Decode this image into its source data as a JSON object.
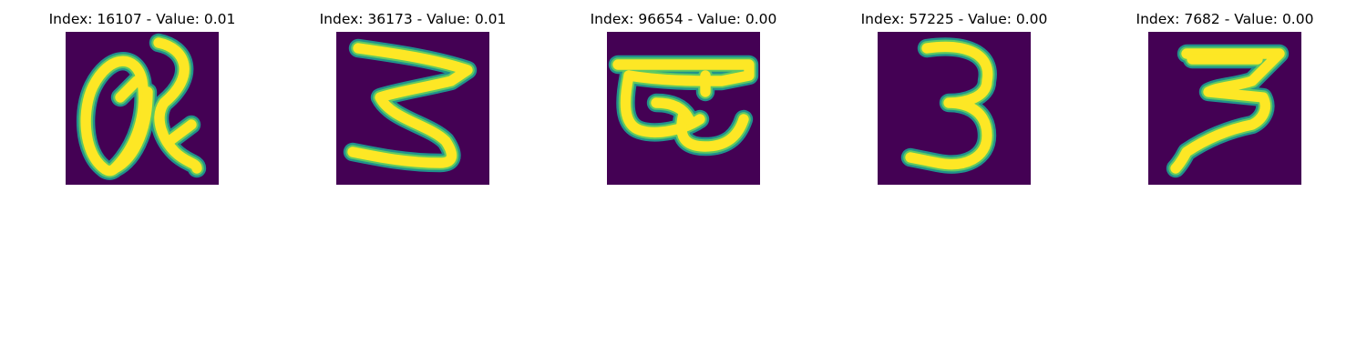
{
  "colors": {
    "background": "#440154",
    "stroke_edge": "#21918c",
    "stroke_mid": "#5ec962",
    "stroke_core": "#fde725"
  },
  "figure": {
    "panels": [
      {
        "title": "Index: 16107 - Value: 0.01",
        "glyph": "handwritten a"
      },
      {
        "title": "Index: 36173 - Value: 0.01",
        "glyph": "handwritten 3"
      },
      {
        "title": "Index: 96654 - Value: 0.00",
        "glyph": "handwritten glyph"
      },
      {
        "title": "Index: 57225 - Value: 0.00",
        "glyph": "handwritten 3"
      },
      {
        "title": "Index: 7682 - Value: 0.00",
        "glyph": "handwritten 3"
      }
    ]
  }
}
